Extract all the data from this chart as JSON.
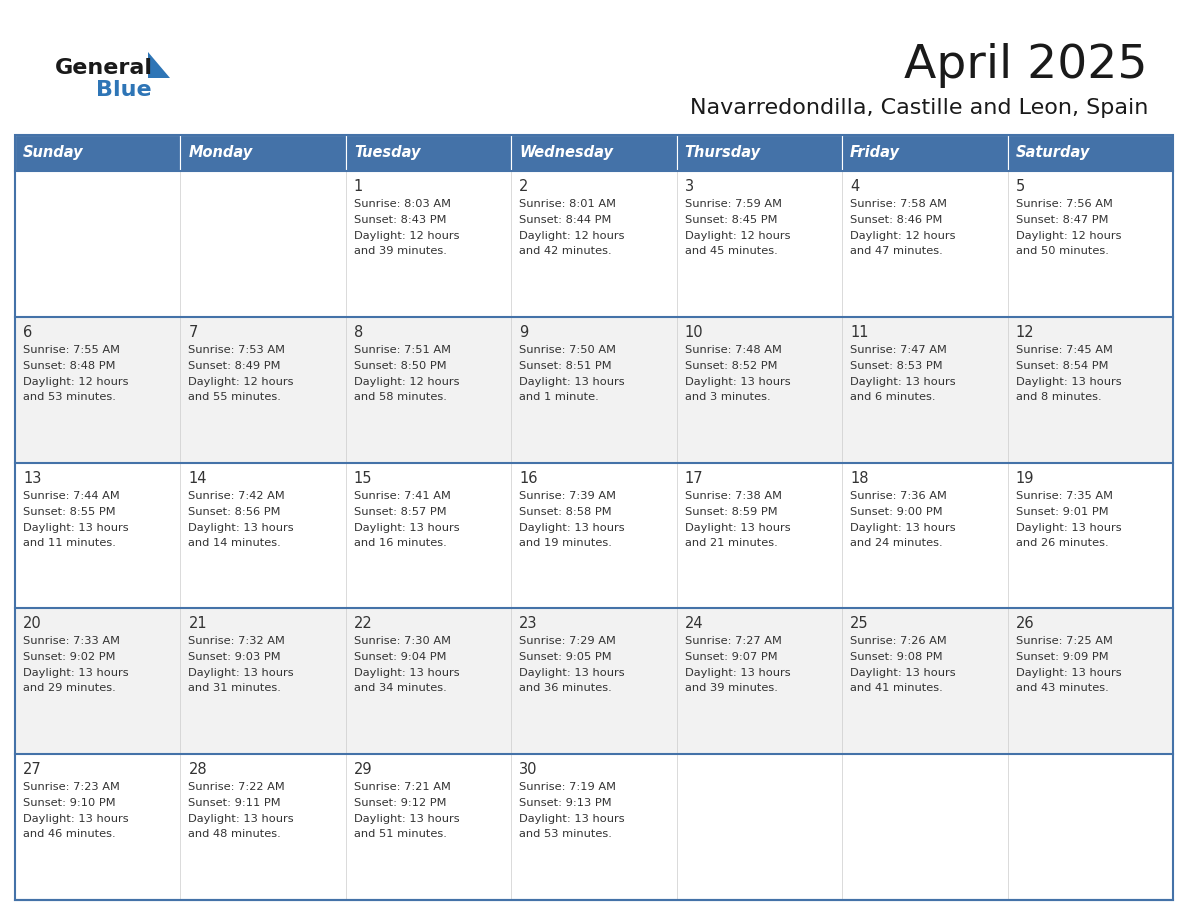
{
  "title": "April 2025",
  "subtitle": "Navarredondilla, Castille and Leon, Spain",
  "days_of_week": [
    "Sunday",
    "Monday",
    "Tuesday",
    "Wednesday",
    "Thursday",
    "Friday",
    "Saturday"
  ],
  "header_bg": "#4472a8",
  "header_text": "#ffffff",
  "cell_bg_odd": "#f2f2f2",
  "cell_bg_even": "#ffffff",
  "grid_line_color": "#4472a8",
  "title_color": "#1a1a1a",
  "subtitle_color": "#1a1a1a",
  "cell_text_color": "#333333",
  "logo_general_color": "#1a1a1a",
  "logo_blue_color": "#2e75b6",
  "logo_triangle_color": "#2e75b6",
  "weeks": [
    [
      {
        "day": null,
        "sunrise": null,
        "sunset": null,
        "daylight": null
      },
      {
        "day": null,
        "sunrise": null,
        "sunset": null,
        "daylight": null
      },
      {
        "day": 1,
        "sunrise": "8:03 AM",
        "sunset": "8:43 PM",
        "daylight": "12 hours\nand 39 minutes."
      },
      {
        "day": 2,
        "sunrise": "8:01 AM",
        "sunset": "8:44 PM",
        "daylight": "12 hours\nand 42 minutes."
      },
      {
        "day": 3,
        "sunrise": "7:59 AM",
        "sunset": "8:45 PM",
        "daylight": "12 hours\nand 45 minutes."
      },
      {
        "day": 4,
        "sunrise": "7:58 AM",
        "sunset": "8:46 PM",
        "daylight": "12 hours\nand 47 minutes."
      },
      {
        "day": 5,
        "sunrise": "7:56 AM",
        "sunset": "8:47 PM",
        "daylight": "12 hours\nand 50 minutes."
      }
    ],
    [
      {
        "day": 6,
        "sunrise": "7:55 AM",
        "sunset": "8:48 PM",
        "daylight": "12 hours\nand 53 minutes."
      },
      {
        "day": 7,
        "sunrise": "7:53 AM",
        "sunset": "8:49 PM",
        "daylight": "12 hours\nand 55 minutes."
      },
      {
        "day": 8,
        "sunrise": "7:51 AM",
        "sunset": "8:50 PM",
        "daylight": "12 hours\nand 58 minutes."
      },
      {
        "day": 9,
        "sunrise": "7:50 AM",
        "sunset": "8:51 PM",
        "daylight": "13 hours\nand 1 minute."
      },
      {
        "day": 10,
        "sunrise": "7:48 AM",
        "sunset": "8:52 PM",
        "daylight": "13 hours\nand 3 minutes."
      },
      {
        "day": 11,
        "sunrise": "7:47 AM",
        "sunset": "8:53 PM",
        "daylight": "13 hours\nand 6 minutes."
      },
      {
        "day": 12,
        "sunrise": "7:45 AM",
        "sunset": "8:54 PM",
        "daylight": "13 hours\nand 8 minutes."
      }
    ],
    [
      {
        "day": 13,
        "sunrise": "7:44 AM",
        "sunset": "8:55 PM",
        "daylight": "13 hours\nand 11 minutes."
      },
      {
        "day": 14,
        "sunrise": "7:42 AM",
        "sunset": "8:56 PM",
        "daylight": "13 hours\nand 14 minutes."
      },
      {
        "day": 15,
        "sunrise": "7:41 AM",
        "sunset": "8:57 PM",
        "daylight": "13 hours\nand 16 minutes."
      },
      {
        "day": 16,
        "sunrise": "7:39 AM",
        "sunset": "8:58 PM",
        "daylight": "13 hours\nand 19 minutes."
      },
      {
        "day": 17,
        "sunrise": "7:38 AM",
        "sunset": "8:59 PM",
        "daylight": "13 hours\nand 21 minutes."
      },
      {
        "day": 18,
        "sunrise": "7:36 AM",
        "sunset": "9:00 PM",
        "daylight": "13 hours\nand 24 minutes."
      },
      {
        "day": 19,
        "sunrise": "7:35 AM",
        "sunset": "9:01 PM",
        "daylight": "13 hours\nand 26 minutes."
      }
    ],
    [
      {
        "day": 20,
        "sunrise": "7:33 AM",
        "sunset": "9:02 PM",
        "daylight": "13 hours\nand 29 minutes."
      },
      {
        "day": 21,
        "sunrise": "7:32 AM",
        "sunset": "9:03 PM",
        "daylight": "13 hours\nand 31 minutes."
      },
      {
        "day": 22,
        "sunrise": "7:30 AM",
        "sunset": "9:04 PM",
        "daylight": "13 hours\nand 34 minutes."
      },
      {
        "day": 23,
        "sunrise": "7:29 AM",
        "sunset": "9:05 PM",
        "daylight": "13 hours\nand 36 minutes."
      },
      {
        "day": 24,
        "sunrise": "7:27 AM",
        "sunset": "9:07 PM",
        "daylight": "13 hours\nand 39 minutes."
      },
      {
        "day": 25,
        "sunrise": "7:26 AM",
        "sunset": "9:08 PM",
        "daylight": "13 hours\nand 41 minutes."
      },
      {
        "day": 26,
        "sunrise": "7:25 AM",
        "sunset": "9:09 PM",
        "daylight": "13 hours\nand 43 minutes."
      }
    ],
    [
      {
        "day": 27,
        "sunrise": "7:23 AM",
        "sunset": "9:10 PM",
        "daylight": "13 hours\nand 46 minutes."
      },
      {
        "day": 28,
        "sunrise": "7:22 AM",
        "sunset": "9:11 PM",
        "daylight": "13 hours\nand 48 minutes."
      },
      {
        "day": 29,
        "sunrise": "7:21 AM",
        "sunset": "9:12 PM",
        "daylight": "13 hours\nand 51 minutes."
      },
      {
        "day": 30,
        "sunrise": "7:19 AM",
        "sunset": "9:13 PM",
        "daylight": "13 hours\nand 53 minutes."
      },
      {
        "day": null,
        "sunrise": null,
        "sunset": null,
        "daylight": null
      },
      {
        "day": null,
        "sunrise": null,
        "sunset": null,
        "daylight": null
      },
      {
        "day": null,
        "sunrise": null,
        "sunset": null,
        "daylight": null
      }
    ]
  ]
}
